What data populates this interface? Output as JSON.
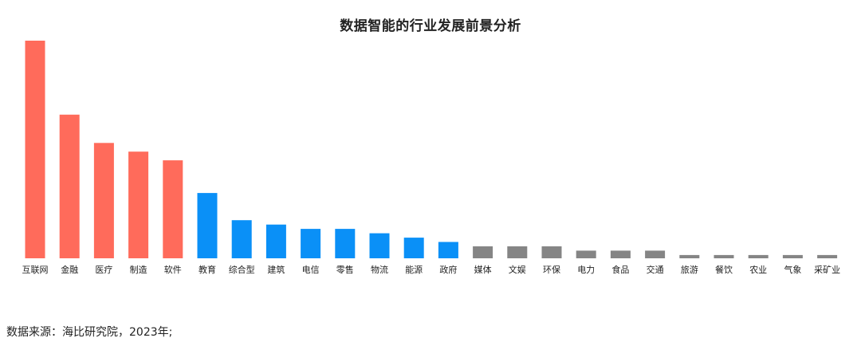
{
  "chart_data": {
    "type": "bar",
    "title": "数据智能的行业发展前景分析",
    "xlabel": "",
    "ylabel": "",
    "categories": [
      "互联网",
      "金融",
      "医疗",
      "制造",
      "软件",
      "教育",
      "综合型",
      "建筑",
      "电信",
      "零售",
      "物流",
      "能源",
      "政府",
      "媒体",
      "文娱",
      "环保",
      "电力",
      "食品",
      "交通",
      "旅游",
      "餐饮",
      "农业",
      "气象",
      "采矿业"
    ],
    "values": [
      100,
      66,
      53,
      49,
      45,
      30,
      17.5,
      15.5,
      13.5,
      13.5,
      11.5,
      9.5,
      7.5,
      5.5,
      5.5,
      5.5,
      3.5,
      3.5,
      3.5,
      1.5,
      1.5,
      1.5,
      1.5,
      1.5
    ],
    "groups": [
      "high",
      "high",
      "high",
      "high",
      "high",
      "mid",
      "mid",
      "mid",
      "mid",
      "mid",
      "mid",
      "mid",
      "mid",
      "low",
      "low",
      "low",
      "low",
      "low",
      "low",
      "low",
      "low",
      "low",
      "low",
      "low"
    ],
    "group_colors": {
      "high": "#FF6B5B",
      "mid": "#0A90F7",
      "low": "#858585"
    },
    "ylim": [
      0,
      100
    ],
    "grid": false,
    "legend": "none"
  },
  "footer": {
    "source": "数据来源：海比研究院，2023年;"
  }
}
